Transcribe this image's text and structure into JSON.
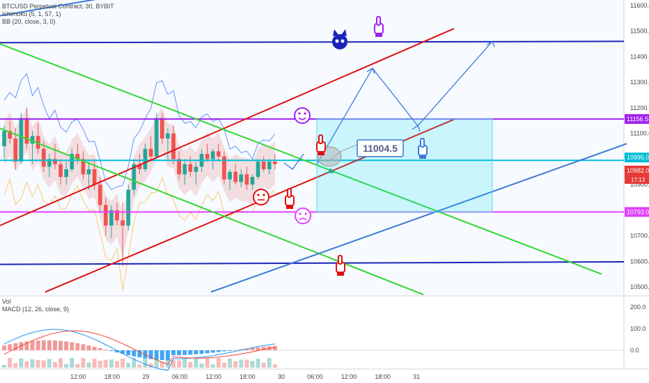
{
  "legend": {
    "line1": "BTCUSD Perpetual Contract, 30, BYBIT",
    "line2": "Ichimoku (5, 1, 57, 1)",
    "line3": "BB (20, close, 3, 0)",
    "vol": "Vol",
    "macd": "MACD (12, 26, close, 9)"
  },
  "chart_data": {
    "type": "candlestick",
    "price_axis_ticks": [
      {
        "value": 11600,
        "label": "11600.0"
      },
      {
        "value": 11500,
        "label": "11500.0"
      },
      {
        "value": 11400,
        "label": "11400.0"
      },
      {
        "value": 11300,
        "label": "11300.0"
      },
      {
        "value": 11200,
        "label": "11200.0"
      },
      {
        "value": 11100,
        "label": "11100.0"
      },
      {
        "value": 10900,
        "label": "10900.0"
      },
      {
        "value": 10800,
        "label": "10800.0"
      },
      {
        "value": 10700,
        "label": "10700.0"
      },
      {
        "value": 10600,
        "label": "10600.0"
      },
      {
        "value": 10500,
        "label": "10500.0"
      }
    ],
    "price_badges": [
      {
        "value": 11156.5,
        "label": "11156.5",
        "color": "#a020f0"
      },
      {
        "value": 10995,
        "label": "10995.0",
        "color": "#00bcd4"
      },
      {
        "value": 10982,
        "label": "10982.0",
        "color": "#e53935"
      },
      {
        "value": 10793,
        "label": "10793.0",
        "color": "#e040fb"
      }
    ],
    "countdown": "17:13",
    "annotation_label": "11004.5",
    "macd_axis_ticks": [
      {
        "value": 200,
        "label": "200.0"
      },
      {
        "value": 100,
        "label": "100.0"
      },
      {
        "value": 0,
        "label": "0.0"
      }
    ],
    "time_labels": [
      {
        "x": 12,
        "label": "12:00"
      },
      {
        "x": 18,
        "label": "18:00"
      },
      {
        "x": 24,
        "label": "29"
      },
      {
        "x": 30,
        "label": "06:00"
      },
      {
        "x": 36,
        "label": "12:00"
      },
      {
        "x": 42,
        "label": "18:00"
      },
      {
        "x": 48,
        "label": "30"
      },
      {
        "x": 54,
        "label": "06:00"
      },
      {
        "x": 60,
        "label": "12:00"
      },
      {
        "x": 66,
        "label": "18:00"
      },
      {
        "x": 72,
        "label": "31"
      }
    ],
    "candles": [
      [
        11050,
        11130,
        11000,
        11110
      ],
      [
        11110,
        11150,
        11060,
        11080
      ],
      [
        11080,
        11120,
        10960,
        10990
      ],
      [
        10990,
        11180,
        10980,
        11160
      ],
      [
        11160,
        11200,
        11040,
        11060
      ],
      [
        11060,
        11110,
        10980,
        11090
      ],
      [
        11090,
        11140,
        11020,
        11040
      ],
      [
        11040,
        11070,
        10950,
        10970
      ],
      [
        10970,
        11020,
        10930,
        11000
      ],
      [
        11000,
        11060,
        10960,
        10980
      ],
      [
        10980,
        11000,
        10900,
        10930
      ],
      [
        10930,
        10990,
        10900,
        10960
      ],
      [
        10960,
        11040,
        10950,
        11020
      ],
      [
        11020,
        11060,
        10980,
        11000
      ],
      [
        11000,
        11030,
        10920,
        10940
      ],
      [
        10940,
        10990,
        10880,
        10960
      ],
      [
        10960,
        11000,
        10880,
        10900
      ],
      [
        10900,
        10930,
        10790,
        10820
      ],
      [
        10820,
        10850,
        10700,
        10740
      ],
      [
        10740,
        10820,
        10690,
        10800
      ],
      [
        10800,
        10830,
        10740,
        10760
      ],
      [
        10760,
        10830,
        10580,
        10740
      ],
      [
        10740,
        10900,
        10720,
        10880
      ],
      [
        10880,
        11000,
        10860,
        10980
      ],
      [
        10980,
        11020,
        10940,
        10960
      ],
      [
        10960,
        11060,
        10950,
        11040
      ],
      [
        11040,
        11090,
        10990,
        11010
      ],
      [
        11010,
        11180,
        11000,
        11160
      ],
      [
        11160,
        11180,
        11060,
        11080
      ],
      [
        11080,
        11120,
        11000,
        11100
      ],
      [
        11100,
        11130,
        10980,
        11000
      ],
      [
        11000,
        11030,
        10920,
        10940
      ],
      [
        10940,
        11000,
        10900,
        10980
      ],
      [
        10980,
        11010,
        10930,
        10950
      ],
      [
        10950,
        10990,
        10900,
        10970
      ],
      [
        10970,
        11040,
        10950,
        11020
      ],
      [
        11020,
        11060,
        10990,
        11000
      ],
      [
        11000,
        11040,
        10960,
        11030
      ],
      [
        11030,
        11060,
        10990,
        11010
      ],
      [
        11010,
        11030,
        10900,
        10920
      ],
      [
        10920,
        10960,
        10880,
        10950
      ],
      [
        10950,
        10980,
        10900,
        10910
      ],
      [
        10910,
        10960,
        10890,
        10940
      ],
      [
        10940,
        10970,
        10880,
        10900
      ],
      [
        10900,
        10940,
        10880,
        10930
      ],
      [
        10930,
        11000,
        10920,
        10990
      ],
      [
        10990,
        11010,
        10950,
        10960
      ],
      [
        10960,
        11000,
        10940,
        10990
      ],
      [
        10990,
        11020,
        10960,
        10980
      ]
    ]
  }
}
